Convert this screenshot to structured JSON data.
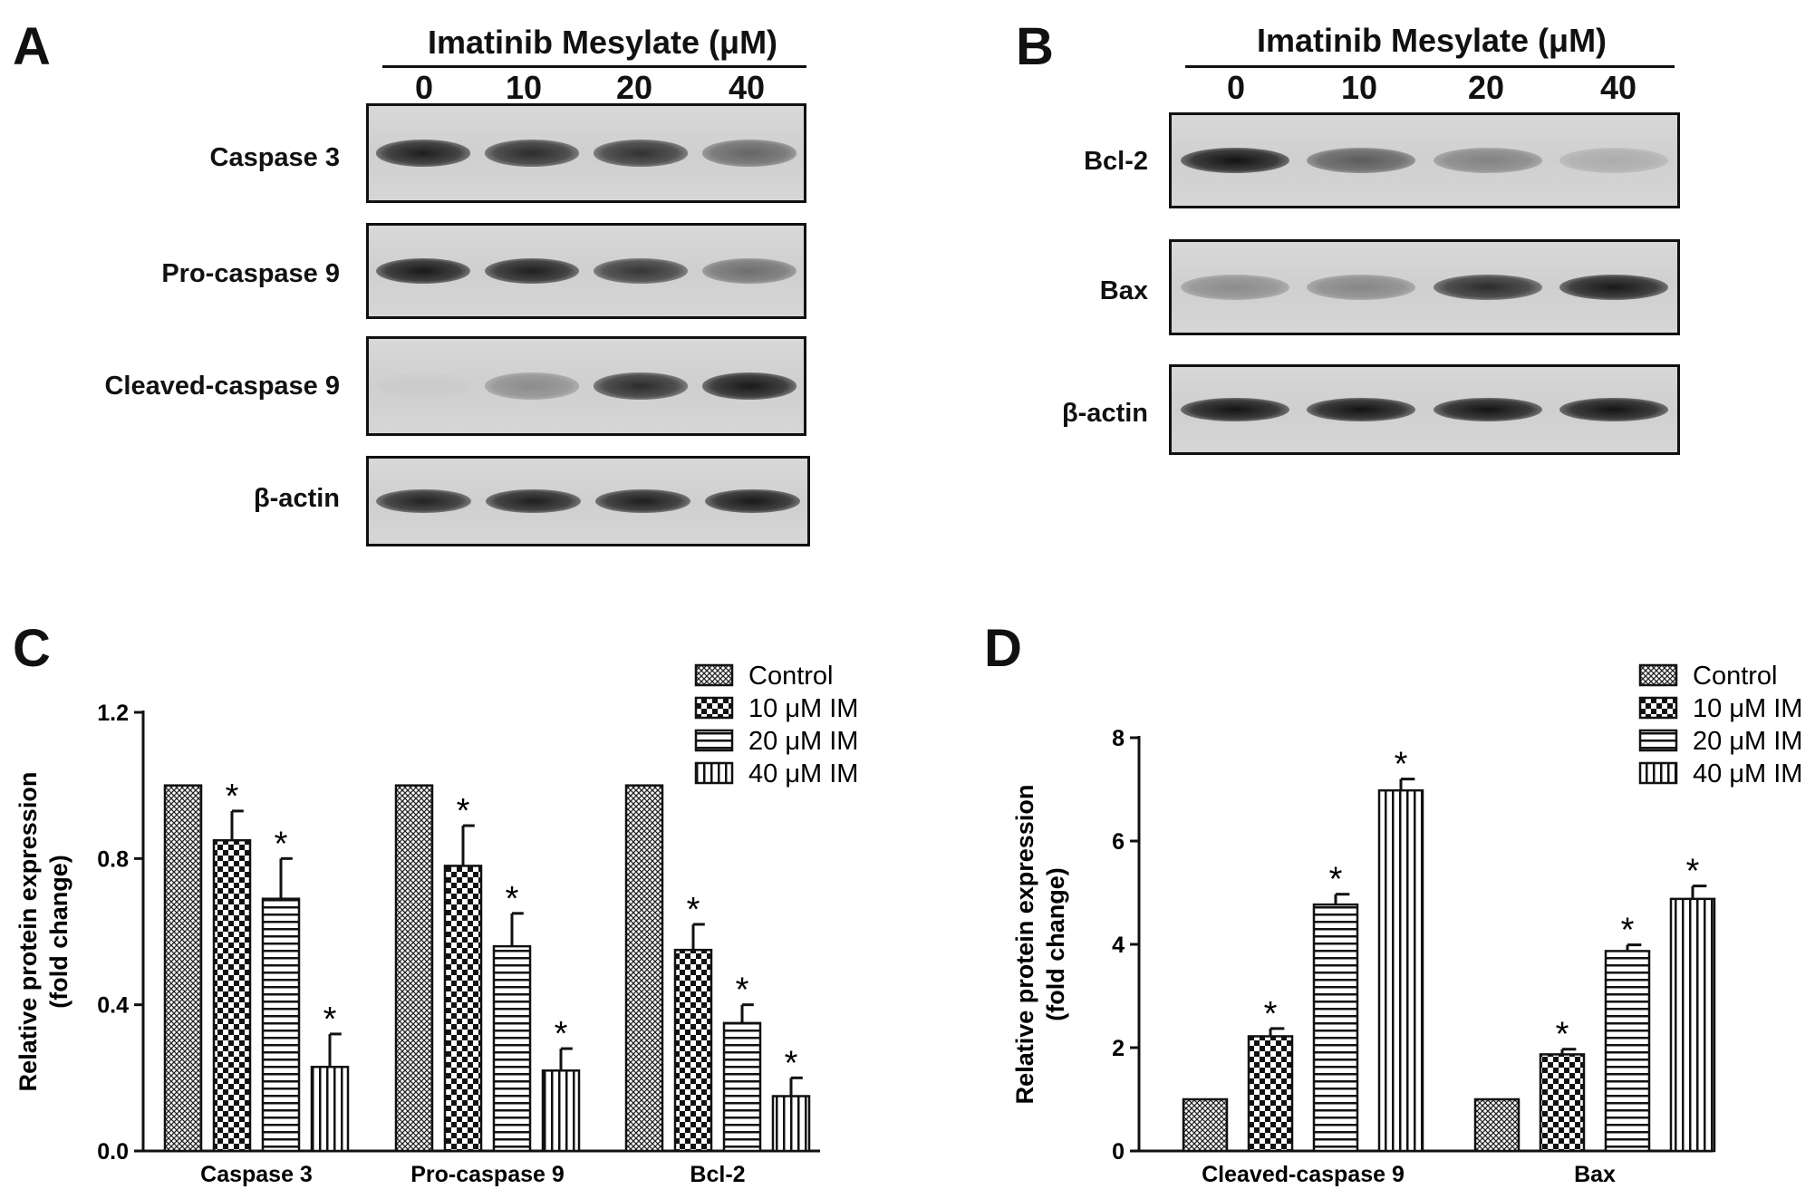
{
  "panels": {
    "a": {
      "letter": "A",
      "title": "Imatinib Mesylate (μM)",
      "concentrations": [
        "0",
        "10",
        "20",
        "40"
      ],
      "rows": [
        {
          "label": "Caspase 3",
          "bands": [
            0.92,
            0.85,
            0.82,
            0.55
          ]
        },
        {
          "label": "Pro-caspase 9",
          "bands": [
            0.95,
            0.92,
            0.8,
            0.5
          ]
        },
        {
          "label": "Cleaved-caspase 9",
          "bands": [
            0.02,
            0.35,
            0.85,
            0.95
          ]
        },
        {
          "label": "β-actin",
          "bands": [
            0.9,
            0.92,
            0.92,
            0.95
          ]
        }
      ]
    },
    "b": {
      "letter": "B",
      "title": "Imatinib Mesylate (μM)",
      "concentrations": [
        "0",
        "10",
        "20",
        "40"
      ],
      "rows": [
        {
          "label": "Bcl-2",
          "bands": [
            0.98,
            0.6,
            0.4,
            0.18
          ]
        },
        {
          "label": "Bax",
          "bands": [
            0.35,
            0.38,
            0.85,
            0.95
          ]
        },
        {
          "label": "β-actin",
          "bands": [
            0.98,
            0.98,
            0.98,
            0.98
          ]
        }
      ]
    },
    "c_letter": "C",
    "d_letter": "D"
  },
  "chart_data": [
    {
      "type": "bar",
      "panel": "C",
      "title": "",
      "xlabel": "",
      "ylabel": "Relative protein expression\n(fold change)",
      "ylim": [
        0,
        1.2
      ],
      "yticks": [
        "0.0",
        "0.4",
        "0.8",
        "1.2"
      ],
      "categories": [
        "Caspase 3",
        "Pro-caspase 9",
        "Bcl-2"
      ],
      "series": [
        {
          "name": "Control",
          "values": [
            1.0,
            1.0,
            1.0
          ],
          "errors": [
            0,
            0,
            0
          ],
          "significant": [
            false,
            false,
            false
          ]
        },
        {
          "name": "10 μM IM",
          "values": [
            0.85,
            0.78,
            0.55
          ],
          "errors": [
            0.08,
            0.11,
            0.07
          ],
          "significant": [
            true,
            true,
            true
          ]
        },
        {
          "name": "20 μM IM",
          "values": [
            0.69,
            0.56,
            0.35
          ],
          "errors": [
            0.11,
            0.09,
            0.05
          ],
          "significant": [
            true,
            true,
            true
          ]
        },
        {
          "name": "40 μM IM",
          "values": [
            0.23,
            0.22,
            0.15
          ],
          "errors": [
            0.09,
            0.06,
            0.05
          ],
          "significant": [
            true,
            true,
            true
          ]
        }
      ],
      "significance_marker": "*",
      "legend_position": "top-right"
    },
    {
      "type": "bar",
      "panel": "D",
      "title": "",
      "xlabel": "",
      "ylabel": "Relative protein expression\n(fold change)",
      "ylim": [
        0,
        8
      ],
      "yticks": [
        "0",
        "2",
        "4",
        "6",
        "8"
      ],
      "categories": [
        "Cleaved-caspase 9",
        "Bax"
      ],
      "series": [
        {
          "name": "Control",
          "values": [
            1.0,
            1.0
          ],
          "errors": [
            0,
            0
          ],
          "significant": [
            false,
            false
          ]
        },
        {
          "name": "10 μM IM",
          "values": [
            2.22,
            1.87
          ],
          "errors": [
            0.15,
            0.1
          ],
          "significant": [
            true,
            true
          ]
        },
        {
          "name": "20 μM IM",
          "values": [
            4.77,
            3.87
          ],
          "errors": [
            0.2,
            0.12
          ],
          "significant": [
            true,
            true
          ]
        },
        {
          "name": "40 μM IM",
          "values": [
            6.98,
            4.88
          ],
          "errors": [
            0.22,
            0.25
          ],
          "significant": [
            true,
            true
          ]
        }
      ],
      "significance_marker": "*",
      "legend_position": "top-right"
    }
  ]
}
